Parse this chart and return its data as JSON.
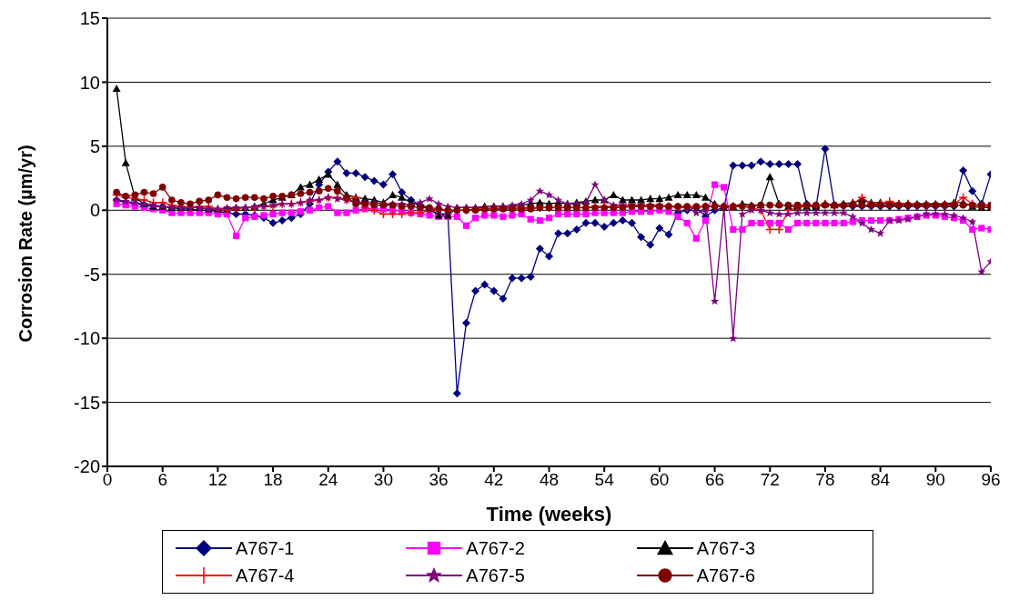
{
  "chart_data": {
    "type": "line",
    "xlabel": "Time (weeks)",
    "ylabel": "Corrosion Rate (µm/yr)",
    "x": [
      1,
      2,
      3,
      4,
      5,
      6,
      7,
      8,
      9,
      10,
      11,
      12,
      13,
      14,
      15,
      16,
      17,
      18,
      19,
      20,
      21,
      22,
      23,
      24,
      25,
      26,
      27,
      28,
      29,
      30,
      31,
      32,
      33,
      34,
      35,
      36,
      37,
      38,
      39,
      40,
      41,
      42,
      43,
      44,
      45,
      46,
      47,
      48,
      49,
      50,
      51,
      52,
      53,
      54,
      55,
      56,
      57,
      58,
      59,
      60,
      61,
      62,
      63,
      64,
      65,
      66,
      67,
      68,
      69,
      70,
      71,
      72,
      73,
      74,
      75,
      76,
      77,
      78,
      79,
      80,
      81,
      82,
      83,
      84,
      85,
      86,
      87,
      88,
      89,
      90,
      91,
      92,
      93,
      94,
      95,
      96
    ],
    "xlim": [
      0,
      96
    ],
    "xticks": [
      0,
      6,
      12,
      18,
      24,
      30,
      36,
      42,
      48,
      54,
      60,
      66,
      72,
      78,
      84,
      90,
      96
    ],
    "ylim": [
      -20,
      15
    ],
    "yticks": [
      -20,
      -15,
      -10,
      -5,
      0,
      5,
      10,
      15
    ],
    "grid": "y",
    "legend": "bottom",
    "line_style": "solid",
    "series": [
      {
        "name": "A767-1",
        "color": "#000080",
        "marker": "diamond",
        "values": [
          0.8,
          0.6,
          0.5,
          0.4,
          0.3,
          0.3,
          0.2,
          0.1,
          0.1,
          0.0,
          0.0,
          -0.1,
          -0.2,
          -0.3,
          -0.3,
          -0.4,
          -0.6,
          -1.0,
          -0.8,
          -0.6,
          -0.3,
          0.5,
          2.0,
          3.0,
          3.8,
          2.9,
          2.9,
          2.6,
          2.3,
          2.0,
          2.8,
          1.4,
          0.8,
          0.4,
          0.0,
          -0.3,
          -0.3,
          -14.3,
          -8.8,
          -6.3,
          -5.8,
          -6.3,
          -6.9,
          -5.3,
          -5.3,
          -5.2,
          -3.0,
          -3.6,
          -1.8,
          -1.8,
          -1.5,
          -1.0,
          -1.0,
          -1.3,
          -1.0,
          -0.8,
          -1.0,
          -2.1,
          -2.7,
          -1.4,
          -1.9,
          -0.2,
          0.0,
          0.2,
          -0.5,
          0.0,
          0.2,
          3.5,
          3.5,
          3.5,
          3.8,
          3.6,
          3.6,
          3.6,
          3.6,
          0.5,
          0.2,
          4.8,
          0.4,
          0.3,
          0.3,
          0.3,
          0.3,
          0.3,
          0.3,
          0.3,
          0.3,
          0.3,
          0.3,
          0.3,
          0.3,
          0.3,
          3.1,
          1.5,
          0.5,
          2.8
        ]
      },
      {
        "name": "A767-2",
        "color": "#ff00ff",
        "marker": "square",
        "values": [
          0.5,
          0.4,
          0.3,
          0.2,
          0.1,
          0.0,
          -0.2,
          -0.2,
          -0.2,
          -0.2,
          -0.2,
          -0.3,
          -0.3,
          -2.0,
          -0.6,
          -0.5,
          -0.4,
          -0.3,
          -0.2,
          -0.2,
          -0.1,
          0.0,
          0.2,
          0.3,
          -0.2,
          -0.2,
          0.0,
          0.1,
          0.1,
          0.1,
          0.0,
          -0.1,
          -0.2,
          -0.3,
          -0.4,
          -0.5,
          -0.5,
          -0.5,
          -1.2,
          -0.6,
          -0.4,
          -0.4,
          -0.5,
          -0.4,
          -0.3,
          -0.7,
          -0.8,
          -0.6,
          -0.3,
          -0.3,
          -0.3,
          -0.3,
          -0.2,
          -0.2,
          -0.2,
          -0.2,
          -0.1,
          -0.1,
          -0.1,
          0.0,
          -0.1,
          -0.5,
          -1.0,
          -2.2,
          -0.8,
          2.0,
          1.8,
          -1.5,
          -1.5,
          -1.0,
          -1.0,
          -1.0,
          -1.0,
          -1.5,
          -1.0,
          -1.0,
          -1.0,
          -1.0,
          -1.0,
          -1.0,
          -0.9,
          -0.8,
          -0.8,
          -0.8,
          -0.8,
          -0.7,
          -0.6,
          -0.5,
          -0.4,
          -0.4,
          -0.5,
          -0.6,
          -0.8,
          -1.5,
          -1.4,
          -1.5
        ]
      },
      {
        "name": "A767-3",
        "color": "#000000",
        "marker": "triangle",
        "values": [
          9.5,
          3.7,
          1.0,
          0.5,
          0.3,
          0.3,
          0.2,
          0.2,
          0.2,
          0.2,
          0.1,
          0.1,
          0.1,
          0.2,
          0.2,
          0.3,
          0.5,
          0.8,
          1.0,
          1.2,
          1.8,
          2.0,
          2.4,
          2.8,
          2.0,
          1.2,
          1.0,
          0.9,
          0.8,
          0.6,
          1.2,
          1.0,
          0.6,
          0.4,
          0.2,
          -0.4,
          -0.4,
          0.2,
          0.2,
          0.2,
          0.3,
          0.3,
          0.3,
          0.3,
          0.4,
          0.5,
          0.6,
          0.5,
          0.6,
          0.5,
          0.6,
          0.7,
          0.8,
          0.8,
          1.2,
          0.8,
          0.8,
          0.8,
          0.9,
          0.9,
          1.0,
          1.2,
          1.2,
          1.2,
          1.0,
          0.5,
          0.2,
          0.3,
          0.5,
          0.4,
          0.4,
          2.6,
          0.5,
          0.3,
          0.3,
          0.3,
          0.3,
          0.5,
          0.4,
          0.5,
          0.6,
          0.8,
          0.6,
          0.6,
          0.5,
          0.5,
          0.5,
          0.5,
          0.5,
          0.5,
          0.5,
          0.6,
          0.6,
          0.3,
          0.2,
          0.2
        ]
      },
      {
        "name": "A767-4",
        "color": "#ff0000",
        "marker": "cross",
        "values": [
          1.2,
          1.0,
          0.9,
          0.8,
          0.6,
          0.6,
          0.4,
          0.3,
          0.2,
          0.3,
          0.3,
          0.1,
          0.0,
          0.1,
          0.2,
          0.2,
          0.3,
          0.3,
          0.5,
          0.5,
          0.6,
          0.7,
          0.8,
          1.0,
          1.0,
          0.8,
          1.0,
          0.2,
          0.0,
          -0.3,
          -0.3,
          -0.3,
          -0.2,
          -0.2,
          0.0,
          0.1,
          0.0,
          0.0,
          0.0,
          0.1,
          0.1,
          0.1,
          0.2,
          0.2,
          0.2,
          0.2,
          0.2,
          0.2,
          0.2,
          0.2,
          0.2,
          0.2,
          0.3,
          0.3,
          0.3,
          0.3,
          0.3,
          0.3,
          0.3,
          0.3,
          0.3,
          0.2,
          0.2,
          0.2,
          0.3,
          0.3,
          0.3,
          0.3,
          0.3,
          0.2,
          0.0,
          -1.5,
          -1.5,
          0.0,
          0.2,
          0.3,
          0.3,
          0.5,
          0.3,
          0.3,
          0.5,
          1.0,
          0.5,
          0.5,
          0.7,
          0.5,
          0.5,
          0.4,
          0.4,
          0.4,
          0.4,
          0.5,
          1.0,
          0.5,
          0.3,
          0.3
        ]
      },
      {
        "name": "A767-5",
        "color": "#800080",
        "marker": "star",
        "values": [
          0.8,
          0.7,
          0.6,
          0.5,
          0.4,
          0.3,
          0.2,
          0.2,
          0.2,
          0.2,
          0.1,
          0.1,
          0.2,
          0.2,
          0.2,
          0.3,
          0.3,
          0.4,
          0.5,
          0.5,
          0.6,
          0.8,
          0.8,
          1.0,
          0.9,
          0.8,
          0.6,
          0.6,
          0.6,
          0.5,
          0.5,
          0.5,
          0.4,
          0.6,
          0.9,
          0.5,
          0.3,
          0.2,
          0.2,
          0.2,
          0.2,
          0.3,
          0.3,
          0.4,
          0.5,
          0.8,
          1.5,
          1.2,
          0.8,
          0.5,
          0.5,
          0.6,
          2.0,
          0.8,
          0.4,
          0.4,
          0.4,
          0.4,
          0.4,
          0.4,
          0.3,
          0.3,
          0.2,
          -0.2,
          0.0,
          -7.1,
          0.2,
          -10.0,
          -0.3,
          0.0,
          0.0,
          -0.2,
          -0.3,
          -0.3,
          -0.2,
          -0.2,
          -0.2,
          -0.2,
          -0.2,
          -0.2,
          -0.5,
          -1.0,
          -1.5,
          -1.8,
          -0.8,
          -0.8,
          -0.7,
          -0.5,
          -0.3,
          -0.3,
          -0.3,
          -0.4,
          -0.6,
          -0.9,
          -4.8,
          -4.0
        ]
      },
      {
        "name": "A767-6",
        "color": "#800000",
        "marker": "circle",
        "values": [
          1.4,
          1.1,
          1.2,
          1.4,
          1.3,
          1.8,
          0.8,
          0.6,
          0.5,
          0.7,
          0.8,
          1.2,
          1.0,
          0.9,
          1.0,
          1.0,
          0.9,
          1.1,
          1.1,
          1.2,
          1.3,
          1.4,
          1.5,
          1.7,
          1.5,
          1.0,
          0.5,
          0.5,
          0.4,
          0.4,
          0.4,
          0.3,
          0.3,
          0.2,
          0.2,
          0.1,
          0.0,
          0.0,
          0.0,
          0.0,
          0.1,
          0.1,
          0.1,
          0.1,
          0.1,
          0.1,
          0.2,
          0.2,
          0.2,
          0.2,
          0.2,
          0.2,
          0.2,
          0.2,
          0.2,
          0.2,
          0.3,
          0.3,
          0.3,
          0.3,
          0.3,
          0.3,
          0.3,
          0.3,
          0.3,
          0.3,
          0.3,
          0.3,
          0.3,
          0.3,
          0.4,
          0.4,
          0.4,
          0.4,
          0.4,
          0.4,
          0.4,
          0.4,
          0.4,
          0.4,
          0.4,
          0.4,
          0.4,
          0.4,
          0.4,
          0.4,
          0.4,
          0.4,
          0.4,
          0.4,
          0.4,
          0.4,
          0.4,
          0.4,
          0.4,
          0.4
        ]
      }
    ]
  }
}
